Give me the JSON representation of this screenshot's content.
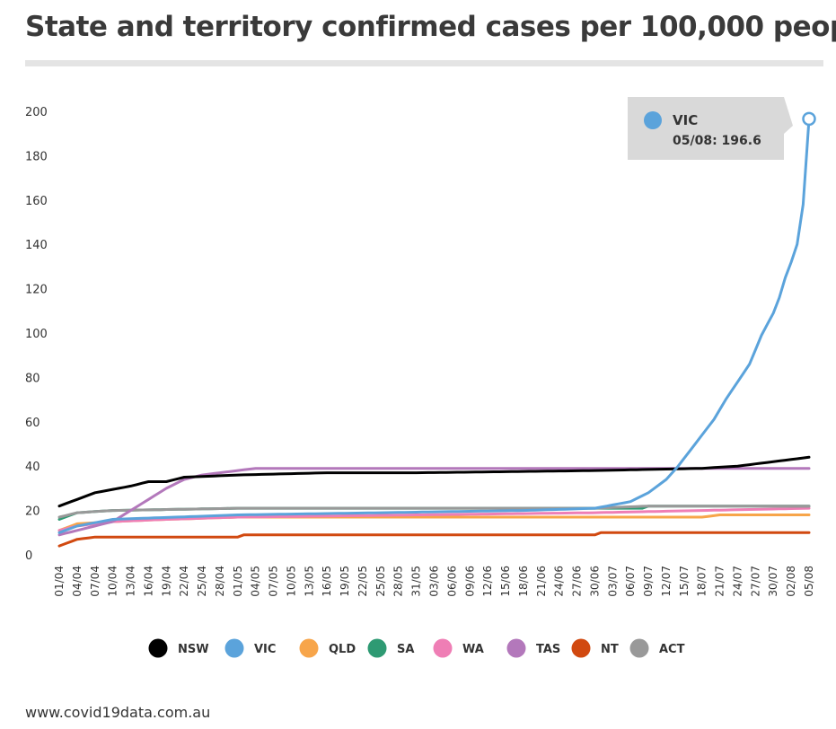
{
  "page": {
    "title": "State and territory confirmed cases per 100,000 people",
    "footer": "www.covid19data.com.au"
  },
  "tooltip": {
    "series": "VIC",
    "label": "05/08: 196.6",
    "x_index": 126,
    "value": 196.6
  },
  "chart_data": {
    "type": "line",
    "title": "State and territory confirmed cases per 100,000 people",
    "xlabel": "",
    "ylabel": "",
    "ylim": [
      0,
      200
    ],
    "yticks": [
      0,
      20,
      40,
      60,
      80,
      100,
      120,
      140,
      160,
      180,
      200
    ],
    "x_count": 127,
    "x_tick_step": 3,
    "x_tick_labels": [
      "01/04",
      "04/04",
      "07/04",
      "10/04",
      "13/04",
      "16/04",
      "19/04",
      "22/04",
      "25/04",
      "28/04",
      "01/05",
      "04/05",
      "07/05",
      "10/05",
      "13/05",
      "16/05",
      "19/05",
      "22/05",
      "25/05",
      "28/05",
      "31/05",
      "03/06",
      "06/06",
      "09/06",
      "12/06",
      "15/06",
      "18/06",
      "21/06",
      "24/06",
      "27/06",
      "30/06",
      "03/07",
      "06/07",
      "09/07",
      "12/07",
      "15/07",
      "18/07",
      "21/07",
      "24/07",
      "27/07",
      "30/07",
      "02/08",
      "05/08"
    ],
    "legend_position": "bottom",
    "grid": false,
    "series": [
      {
        "name": "NSW",
        "color": "#000000",
        "anchors": [
          [
            0,
            22
          ],
          [
            3,
            25
          ],
          [
            6,
            28
          ],
          [
            12,
            31
          ],
          [
            15,
            33
          ],
          [
            18,
            33
          ],
          [
            21,
            35
          ],
          [
            30,
            36
          ],
          [
            45,
            37
          ],
          [
            60,
            37
          ],
          [
            90,
            38
          ],
          [
            108,
            39
          ],
          [
            114,
            40
          ],
          [
            120,
            42
          ],
          [
            126,
            44
          ]
        ]
      },
      {
        "name": "VIC",
        "color": "#5ba3db",
        "anchors": [
          [
            0,
            10
          ],
          [
            3,
            13
          ],
          [
            9,
            16
          ],
          [
            30,
            18
          ],
          [
            54,
            19
          ],
          [
            78,
            20
          ],
          [
            90,
            21
          ],
          [
            96,
            24
          ],
          [
            99,
            28
          ],
          [
            102,
            34
          ],
          [
            104,
            40
          ],
          [
            106,
            47
          ],
          [
            108,
            54
          ],
          [
            110,
            61
          ],
          [
            112,
            70
          ],
          [
            114,
            78
          ],
          [
            116,
            86
          ],
          [
            118,
            99
          ],
          [
            120,
            109
          ],
          [
            121,
            116
          ],
          [
            122,
            125
          ],
          [
            123,
            132
          ],
          [
            124,
            140
          ],
          [
            125,
            158
          ],
          [
            126,
            170
          ],
          [
            126,
            196.6
          ]
        ]
      },
      {
        "name": "QLD",
        "color": "#f7a54a",
        "anchors": [
          [
            0,
            11
          ],
          [
            3,
            14
          ],
          [
            9,
            15
          ],
          [
            18,
            16
          ],
          [
            30,
            17
          ],
          [
            60,
            17
          ],
          [
            90,
            17
          ],
          [
            108,
            17
          ],
          [
            111,
            18
          ],
          [
            126,
            18
          ]
        ]
      },
      {
        "name": "SA",
        "color": "#2e9a73",
        "anchors": [
          [
            0,
            16
          ],
          [
            3,
            19
          ],
          [
            9,
            20
          ],
          [
            30,
            21
          ],
          [
            60,
            21
          ],
          [
            90,
            21
          ],
          [
            98,
            21
          ],
          [
            99,
            22
          ],
          [
            126,
            22
          ]
        ]
      },
      {
        "name": "WA",
        "color": "#ef7eb5",
        "anchors": [
          [
            0,
            11
          ],
          [
            3,
            13
          ],
          [
            9,
            15
          ],
          [
            18,
            16
          ],
          [
            30,
            17
          ],
          [
            60,
            18
          ],
          [
            90,
            19
          ],
          [
            108,
            20
          ],
          [
            126,
            21
          ]
        ]
      },
      {
        "name": "TAS",
        "color": "#b378bb",
        "anchors": [
          [
            0,
            9
          ],
          [
            3,
            11
          ],
          [
            6,
            13
          ],
          [
            9,
            15
          ],
          [
            12,
            20
          ],
          [
            15,
            25
          ],
          [
            18,
            30
          ],
          [
            21,
            34
          ],
          [
            24,
            36
          ],
          [
            27,
            37
          ],
          [
            30,
            38
          ],
          [
            33,
            39
          ],
          [
            126,
            39
          ]
        ]
      },
      {
        "name": "NT",
        "color": "#d14910",
        "anchors": [
          [
            0,
            4
          ],
          [
            3,
            7
          ],
          [
            6,
            8
          ],
          [
            30,
            8
          ],
          [
            31,
            9
          ],
          [
            90,
            9
          ],
          [
            91,
            10
          ],
          [
            126,
            10
          ]
        ]
      },
      {
        "name": "ACT",
        "color": "#999999",
        "anchors": [
          [
            0,
            17
          ],
          [
            3,
            19
          ],
          [
            9,
            20
          ],
          [
            30,
            21
          ],
          [
            60,
            21
          ],
          [
            90,
            21
          ],
          [
            99,
            22
          ],
          [
            126,
            22
          ]
        ]
      }
    ]
  }
}
